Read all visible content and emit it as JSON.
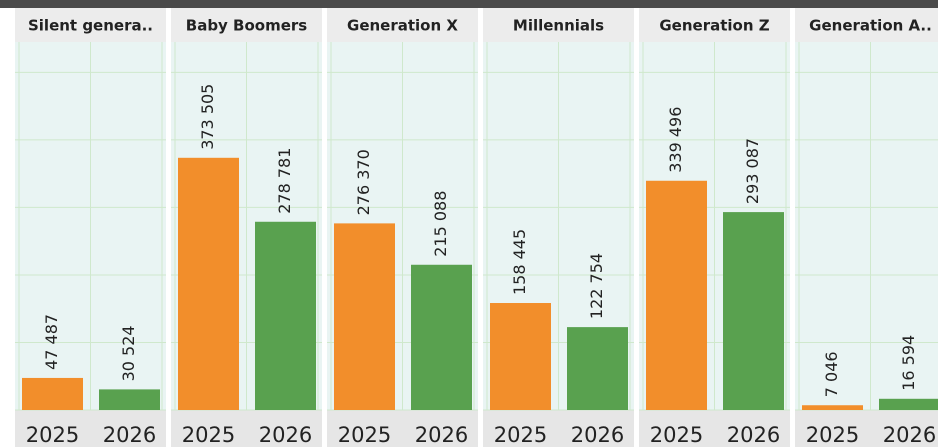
{
  "chart_data": {
    "type": "bar",
    "categories": [
      "Silent genera..",
      "Baby Boomers",
      "Generation X",
      "Millennials",
      "Generation Z",
      "Generation A.."
    ],
    "series": [
      {
        "name": "2025",
        "color": "#f28e2b",
        "values": [
          47487,
          373505,
          276370,
          158445,
          339496,
          7046
        ],
        "value_labels": [
          "47 487",
          "373 505",
          "276 370",
          "158 445",
          "339 496",
          "7 046"
        ]
      },
      {
        "name": "2026",
        "color": "#59a14f",
        "values": [
          30524,
          278781,
          215088,
          122754,
          293087,
          16594
        ],
        "value_labels": [
          "30 524",
          "278 781",
          "215 088",
          "122 754",
          "293 087",
          "16 594"
        ]
      }
    ],
    "ylim": [
      0,
      545000
    ],
    "yticks": [
      0,
      100000,
      200000,
      300000,
      400000,
      500000
    ],
    "grid": true
  }
}
